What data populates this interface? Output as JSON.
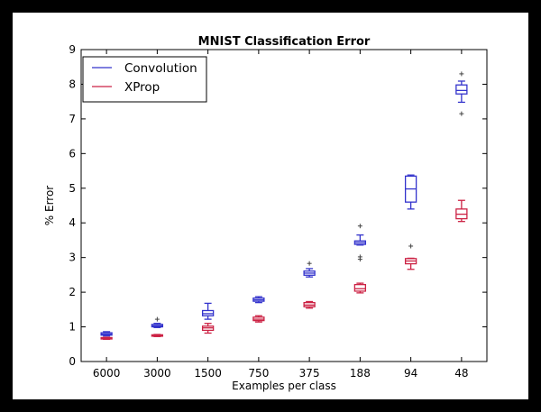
{
  "chart_data": {
    "type": "box",
    "title": "MNIST Classification Error",
    "xlabel": "Examples per class",
    "ylabel": "% Error",
    "categories": [
      "6000",
      "3000",
      "1500",
      "750",
      "375",
      "188",
      "94",
      "48"
    ],
    "ylim": [
      0,
      9
    ],
    "yticks": [
      0,
      1,
      2,
      3,
      4,
      5,
      6,
      7,
      8,
      9
    ],
    "legend": {
      "placement": "top-left"
    },
    "grid": false,
    "series": [
      {
        "name": "Convolution",
        "color": "#3333cc",
        "boxes": [
          {
            "whislo": 0.74,
            "q1": 0.76,
            "med": 0.79,
            "q3": 0.83,
            "whishi": 0.86,
            "fliers": []
          },
          {
            "whislo": 0.98,
            "q1": 1.0,
            "med": 1.03,
            "q3": 1.07,
            "whishi": 1.1,
            "fliers": [
              1.22
            ]
          },
          {
            "whislo": 1.22,
            "q1": 1.32,
            "med": 1.38,
            "q3": 1.47,
            "whishi": 1.68,
            "fliers": []
          },
          {
            "whislo": 1.7,
            "q1": 1.74,
            "med": 1.78,
            "q3": 1.83,
            "whishi": 1.87,
            "fliers": []
          },
          {
            "whislo": 2.44,
            "q1": 2.49,
            "med": 2.55,
            "q3": 2.61,
            "whishi": 2.68,
            "fliers": [
              2.83
            ]
          },
          {
            "whislo": 3.36,
            "q1": 3.38,
            "med": 3.43,
            "q3": 3.48,
            "whishi": 3.65,
            "fliers": [
              2.95,
              3.02,
              3.91
            ]
          },
          {
            "whislo": 4.4,
            "q1": 4.6,
            "med": 4.98,
            "q3": 5.35,
            "whishi": 5.38,
            "fliers": []
          },
          {
            "whislo": 7.48,
            "q1": 7.72,
            "med": 7.82,
            "q3": 7.98,
            "whishi": 8.09,
            "fliers": [
              7.15,
              8.3
            ]
          }
        ]
      },
      {
        "name": "XProp",
        "color": "#cc2244",
        "boxes": [
          {
            "whislo": 0.64,
            "q1": 0.65,
            "med": 0.67,
            "q3": 0.69,
            "whishi": 0.7,
            "fliers": []
          },
          {
            "whislo": 0.72,
            "q1": 0.73,
            "med": 0.75,
            "q3": 0.77,
            "whishi": 0.78,
            "fliers": []
          },
          {
            "whislo": 0.82,
            "q1": 0.9,
            "med": 0.97,
            "q3": 1.02,
            "whishi": 1.1,
            "fliers": []
          },
          {
            "whislo": 1.14,
            "q1": 1.18,
            "med": 1.22,
            "q3": 1.28,
            "whishi": 1.32,
            "fliers": []
          },
          {
            "whislo": 1.54,
            "q1": 1.58,
            "med": 1.63,
            "q3": 1.7,
            "whishi": 1.73,
            "fliers": []
          },
          {
            "whislo": 1.98,
            "q1": 2.03,
            "med": 2.1,
            "q3": 2.22,
            "whishi": 2.26,
            "fliers": []
          },
          {
            "whislo": 2.66,
            "q1": 2.82,
            "med": 2.9,
            "q3": 2.97,
            "whishi": 2.98,
            "fliers": [
              3.33
            ]
          },
          {
            "whislo": 4.04,
            "q1": 4.12,
            "med": 4.25,
            "q3": 4.4,
            "whishi": 4.65,
            "fliers": []
          }
        ]
      }
    ]
  }
}
